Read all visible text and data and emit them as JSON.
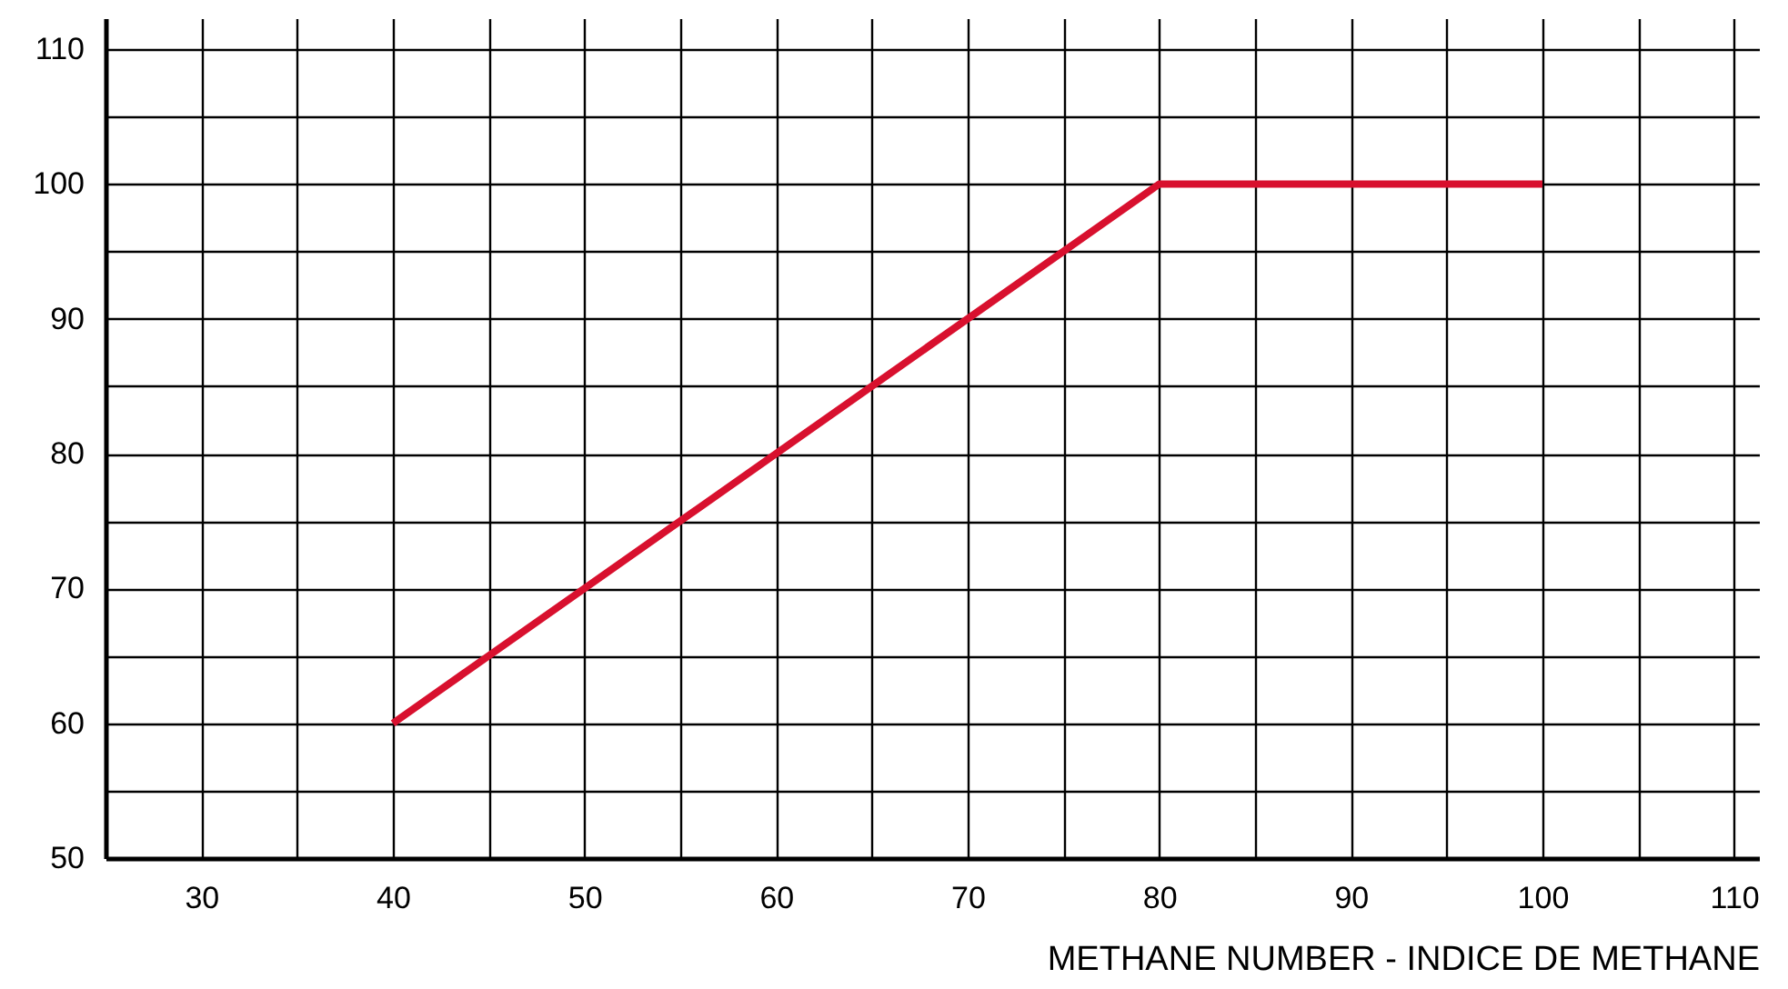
{
  "chart_data": {
    "type": "line",
    "xlabel": "METHANE NUMBER - INDICE DE METHANE",
    "x": [
      40,
      80,
      100
    ],
    "series": [
      {
        "color": "#d8102e",
        "values": [
          60,
          100,
          100
        ]
      }
    ],
    "xlim": [
      25,
      111.3
    ],
    "ylim": [
      50,
      112.3
    ],
    "xticks": [
      30,
      {
        "value": 35,
        "label": null
      },
      40,
      {
        "value": 45,
        "label": null
      },
      50,
      {
        "value": 55,
        "label": null
      },
      60,
      {
        "value": 65,
        "label": null
      },
      70,
      {
        "value": 75,
        "label": null
      },
      80,
      {
        "value": 85,
        "label": null
      },
      90,
      {
        "value": 95,
        "label": null
      },
      100,
      {
        "value": 105,
        "label": null
      },
      110
    ],
    "yticks": [
      50,
      {
        "value": 55,
        "label": null
      },
      60,
      {
        "value": 65,
        "label": null
      },
      70,
      {
        "value": 75,
        "label": null
      },
      80,
      {
        "value": 85,
        "label": null
      },
      90,
      {
        "value": 95,
        "label": null
      },
      100,
      {
        "value": 105,
        "label": null
      },
      110
    ],
    "grid": true,
    "line_style": "solid",
    "marker": "none"
  }
}
